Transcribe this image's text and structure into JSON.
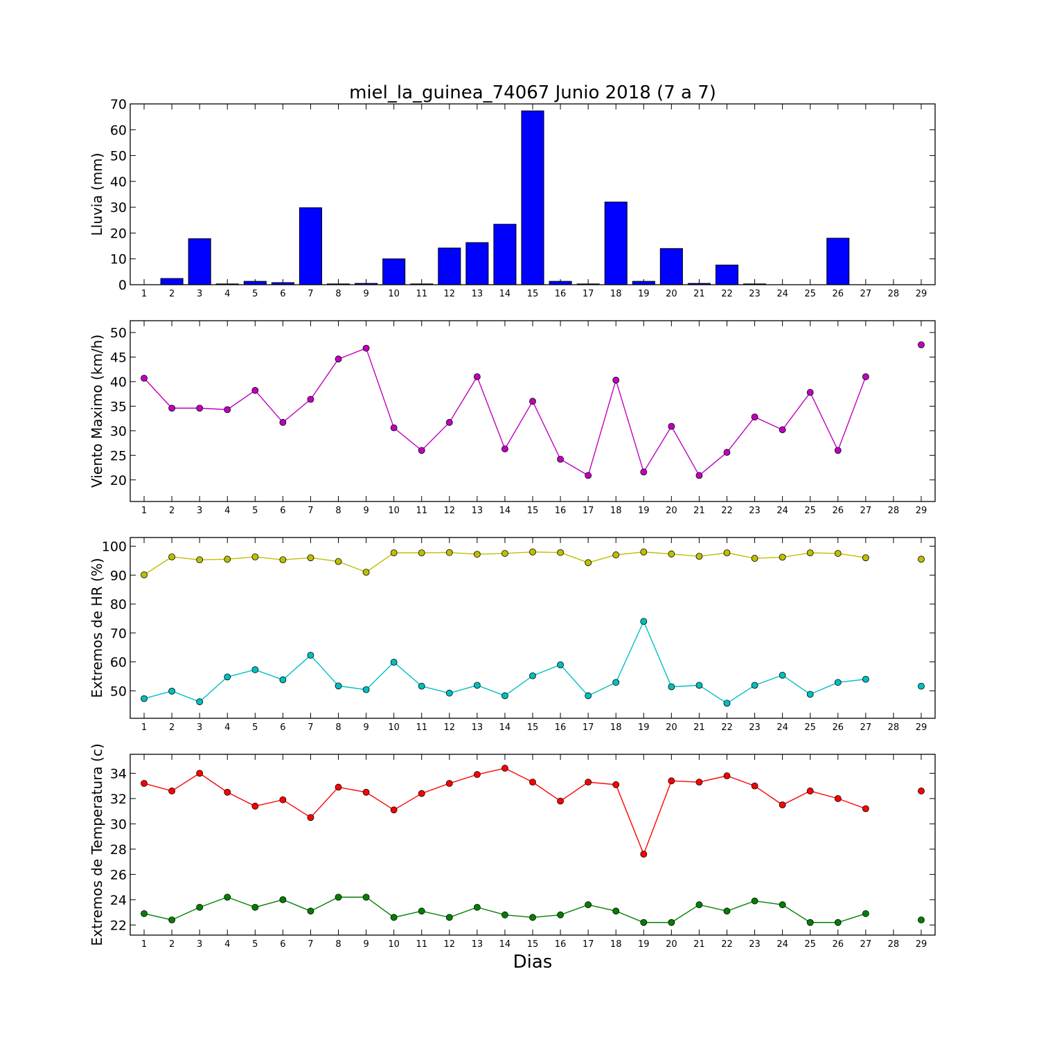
{
  "title": "miel_la_guinea_74067 Junio 2018  (7 a 7)",
  "xlabel": "Dias",
  "colors": {
    "bar": "#0000ff",
    "wind": "#bf00bf",
    "hr_max": "#bfbf00",
    "hr_min": "#00bfbf",
    "temp_max": "#ff0000",
    "temp_min": "#008000"
  },
  "chart_data": [
    {
      "type": "bar",
      "ylabel": "Lluvia (mm)",
      "ylim": [
        0,
        70
      ],
      "yticks": [
        0,
        10,
        20,
        30,
        40,
        50,
        60,
        70
      ],
      "categories": [
        1,
        2,
        3,
        4,
        5,
        6,
        7,
        8,
        9,
        10,
        11,
        12,
        13,
        14,
        15,
        16,
        17,
        18,
        19,
        20,
        21,
        22,
        23,
        24,
        25,
        26,
        27,
        28,
        29
      ],
      "values": [
        0,
        2.4,
        17.8,
        0.3,
        1.3,
        0.8,
        29.8,
        0.3,
        0.5,
        10.0,
        0.3,
        14.2,
        16.3,
        23.4,
        67.3,
        1.3,
        0.3,
        32.0,
        1.3,
        14.0,
        0.5,
        7.6,
        0.3,
        0,
        0,
        18.0,
        0,
        0,
        0
      ]
    },
    {
      "type": "line",
      "ylabel": "Viento Maximo (km/h)",
      "ylim": [
        15.6,
        52.4
      ],
      "yticks": [
        20,
        25,
        30,
        35,
        40,
        45,
        50
      ],
      "x": [
        1,
        2,
        3,
        4,
        5,
        6,
        7,
        8,
        9,
        10,
        11,
        12,
        13,
        14,
        15,
        16,
        17,
        18,
        19,
        20,
        21,
        22,
        23,
        24,
        25,
        26,
        27,
        28,
        29
      ],
      "series": [
        {
          "color_key": "wind",
          "values": [
            40.7,
            34.6,
            34.6,
            34.3,
            38.2,
            31.7,
            36.4,
            44.6,
            46.8,
            30.6,
            26.0,
            31.7,
            41.0,
            26.3,
            36.0,
            24.2,
            20.9,
            40.3,
            21.6,
            30.9,
            20.9,
            25.6,
            32.8,
            30.2,
            37.8,
            26.0,
            41.0,
            null,
            47.5
          ]
        }
      ]
    },
    {
      "type": "line",
      "ylabel": "Extremos de HR (%)",
      "ylim": [
        40.5,
        103.0
      ],
      "yticks": [
        50,
        60,
        70,
        80,
        90,
        100
      ],
      "x": [
        1,
        2,
        3,
        4,
        5,
        6,
        7,
        8,
        9,
        10,
        11,
        12,
        13,
        14,
        15,
        16,
        17,
        18,
        19,
        20,
        21,
        22,
        23,
        24,
        25,
        26,
        27,
        28,
        29
      ],
      "series": [
        {
          "color_key": "hr_max",
          "values": [
            90.1,
            96.3,
            95.3,
            95.5,
            96.3,
            95.3,
            96.0,
            94.7,
            91.0,
            97.7,
            97.7,
            97.8,
            97.2,
            97.5,
            98.0,
            97.8,
            94.3,
            97.0,
            98.0,
            97.3,
            96.5,
            97.7,
            95.8,
            96.2,
            97.7,
            97.5,
            96.0,
            null,
            95.5
          ]
        },
        {
          "color_key": "hr_min",
          "values": [
            47.3,
            49.9,
            46.2,
            54.8,
            57.3,
            53.8,
            62.3,
            51.7,
            50.4,
            59.9,
            51.6,
            49.2,
            51.9,
            48.3,
            55.2,
            59.0,
            48.3,
            52.9,
            74.0,
            51.4,
            51.9,
            45.7,
            51.9,
            55.4,
            48.8,
            52.9,
            54.0,
            null,
            51.6
          ]
        }
      ]
    },
    {
      "type": "line",
      "ylabel": "Extremos de Temperatura (c)",
      "ylim": [
        21.2,
        35.5
      ],
      "yticks": [
        22,
        24,
        26,
        28,
        30,
        32,
        34
      ],
      "x": [
        1,
        2,
        3,
        4,
        5,
        6,
        7,
        8,
        9,
        10,
        11,
        12,
        13,
        14,
        15,
        16,
        17,
        18,
        19,
        20,
        21,
        22,
        23,
        24,
        25,
        26,
        27,
        28,
        29
      ],
      "series": [
        {
          "color_key": "temp_max",
          "values": [
            33.2,
            32.6,
            34.0,
            32.5,
            31.4,
            31.9,
            30.5,
            32.9,
            32.5,
            31.1,
            32.4,
            33.2,
            33.9,
            34.4,
            33.3,
            31.8,
            33.3,
            33.1,
            27.6,
            33.4,
            33.3,
            33.8,
            33.0,
            31.5,
            32.6,
            32.0,
            31.2,
            null,
            32.6
          ]
        },
        {
          "color_key": "temp_min",
          "values": [
            22.9,
            22.4,
            23.4,
            24.2,
            23.4,
            24.0,
            23.1,
            24.2,
            24.2,
            22.6,
            23.1,
            22.6,
            23.4,
            22.8,
            22.6,
            22.8,
            23.6,
            23.1,
            22.2,
            22.2,
            23.6,
            23.1,
            23.9,
            23.6,
            22.2,
            22.2,
            22.9,
            null,
            22.4
          ]
        }
      ]
    }
  ]
}
